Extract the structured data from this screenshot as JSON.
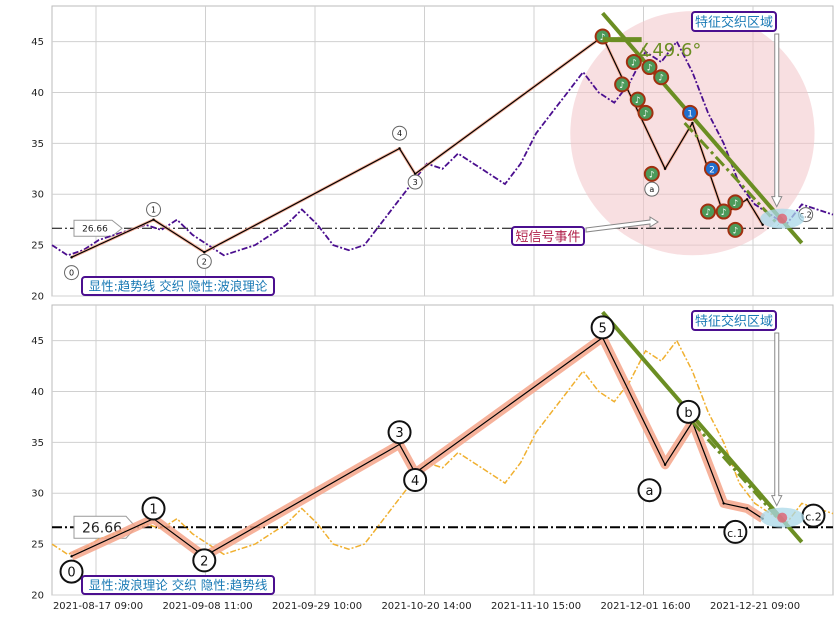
{
  "chart_data": [
    {
      "type": "line",
      "panel": "top",
      "ylim": [
        20,
        48.5
      ],
      "yticks": [
        20,
        25,
        30,
        35,
        40,
        45
      ],
      "xlim": [
        0,
        100
      ],
      "reference_value": 26.66,
      "reference_label": "26.66",
      "legend_text": "显性:趋势线 交织 隐性:波浪理论",
      "region_label": "特征交织区域",
      "event_label": "短信号事件",
      "angle_label": "∡49.6°",
      "wave_labels": [
        "0",
        "1",
        "2",
        "3",
        "4",
        "a",
        "c.2"
      ],
      "node_labels": [
        "1",
        "2"
      ],
      "series": [
        {
          "name": "",
          "color": "#4b0f8f",
          "x": [
            0,
            2,
            4,
            6,
            8,
            10,
            12,
            14,
            16,
            18,
            20,
            22,
            24,
            26,
            28,
            30,
            32,
            34,
            36,
            38,
            40,
            42,
            44,
            46,
            48,
            50,
            52,
            54,
            56,
            58,
            60,
            62,
            64,
            66,
            68,
            70,
            72,
            74,
            76,
            78,
            80,
            82,
            84,
            86,
            88,
            90,
            92,
            94,
            96,
            98,
            100
          ],
          "y": [
            25,
            24,
            24.5,
            25.5,
            26,
            26.5,
            27,
            26.5,
            27.5,
            26,
            25,
            24,
            24.5,
            25,
            26,
            27,
            28.5,
            27,
            25,
            24.5,
            25,
            27,
            29,
            31,
            33,
            32.5,
            34,
            33,
            32,
            31,
            33,
            36,
            38,
            40,
            42,
            40,
            39,
            41,
            44,
            43,
            45,
            42,
            38,
            35,
            31,
            29,
            28,
            27,
            29,
            28.5,
            28
          ]
        }
      ],
      "wave_points": [
        {
          "x": 2.5,
          "y": 23.8
        },
        {
          "x": 13,
          "y": 27.5
        },
        {
          "x": 19.5,
          "y": 24.3
        },
        {
          "x": 44.5,
          "y": 34.5
        },
        {
          "x": 46.5,
          "y": 32
        },
        {
          "x": 70.5,
          "y": 45.5
        },
        {
          "x": 78.5,
          "y": 32.5
        },
        {
          "x": 82,
          "y": 37
        },
        {
          "x": 86,
          "y": 28
        },
        {
          "x": 89,
          "y": 29.5
        },
        {
          "x": 91,
          "y": 27
        }
      ],
      "trend_lines": [
        {
          "x1": 70.5,
          "y1": 47.8,
          "x2": 96,
          "y2": 25.2
        },
        {
          "x1": 81,
          "y1": 37,
          "x2": 93,
          "y2": 27
        }
      ],
      "circle_center": {
        "x": 82,
        "y": 36
      },
      "circle_radius_value": 12
    },
    {
      "type": "line",
      "panel": "bottom",
      "ylim": [
        20,
        48.5
      ],
      "yticks": [
        20,
        25,
        30,
        35,
        40,
        45
      ],
      "xlim": [
        0,
        100
      ],
      "reference_value": 26.66,
      "reference_label": "26.66",
      "legend_text": "显性:波浪理论 交织 隐性:趋势线",
      "region_label": "特征交织区域",
      "wave_labels": [
        "0",
        "1",
        "2",
        "3",
        "4",
        "5",
        "a",
        "b",
        "c.1",
        "c.2"
      ],
      "xtick_labels": [
        "2021-08-17 09:00",
        "2021-09-08 11:00",
        "2021-09-29 10:00",
        "2021-10-20 14:00",
        "2021-11-10 15:00",
        "2021-12-01 16:00",
        "2021-12-21 09:00"
      ],
      "series": [
        {
          "name": "",
          "color": "#f0b030",
          "x": [
            0,
            2,
            4,
            6,
            8,
            10,
            12,
            14,
            16,
            18,
            20,
            22,
            24,
            26,
            28,
            30,
            32,
            34,
            36,
            38,
            40,
            42,
            44,
            46,
            48,
            50,
            52,
            54,
            56,
            58,
            60,
            62,
            64,
            66,
            68,
            70,
            72,
            74,
            76,
            78,
            80,
            82,
            84,
            86,
            88,
            90,
            92,
            94,
            96,
            98,
            100
          ],
          "y": [
            25,
            24,
            24.5,
            25.5,
            26,
            26.5,
            27,
            26.5,
            27.5,
            26,
            25,
            24,
            24.5,
            25,
            26,
            27,
            28.5,
            27,
            25,
            24.5,
            25,
            27,
            29,
            31,
            33,
            32.5,
            34,
            33,
            32,
            31,
            33,
            36,
            38,
            40,
            42,
            40,
            39,
            41,
            44,
            43,
            45,
            42,
            38,
            35,
            31,
            29,
            28,
            27,
            29,
            28.5,
            28
          ]
        }
      ],
      "wave_points": [
        {
          "x": 2.5,
          "y": 23.8
        },
        {
          "x": 13,
          "y": 27.5
        },
        {
          "x": 19.5,
          "y": 23.8
        },
        {
          "x": 44.5,
          "y": 34.8
        },
        {
          "x": 46.5,
          "y": 32
        },
        {
          "x": 70.5,
          "y": 45.3
        },
        {
          "x": 78.5,
          "y": 32.8
        },
        {
          "x": 82,
          "y": 37
        },
        {
          "x": 86,
          "y": 29
        },
        {
          "x": 89,
          "y": 28.5
        },
        {
          "x": 91,
          "y": 27.5
        }
      ],
      "trend_lines": [
        {
          "x1": 70.5,
          "y1": 47.8,
          "x2": 96,
          "y2": 25.2
        },
        {
          "x1": 82,
          "y1": 37,
          "x2": 93,
          "y2": 27.5
        }
      ]
    }
  ],
  "colors": {
    "purple_series": "#4b0f8f",
    "gold_series": "#f0b030",
    "wave_line": "#000000",
    "wave_band": "#f4a58a",
    "trend": "#6b8e23",
    "circle_fill": "#f2c4c8",
    "label_box_border": "#4b0f8f",
    "label_box_text": "#1a7ab5",
    "event_text": "#b0204a",
    "node_circle": "#a03010"
  }
}
